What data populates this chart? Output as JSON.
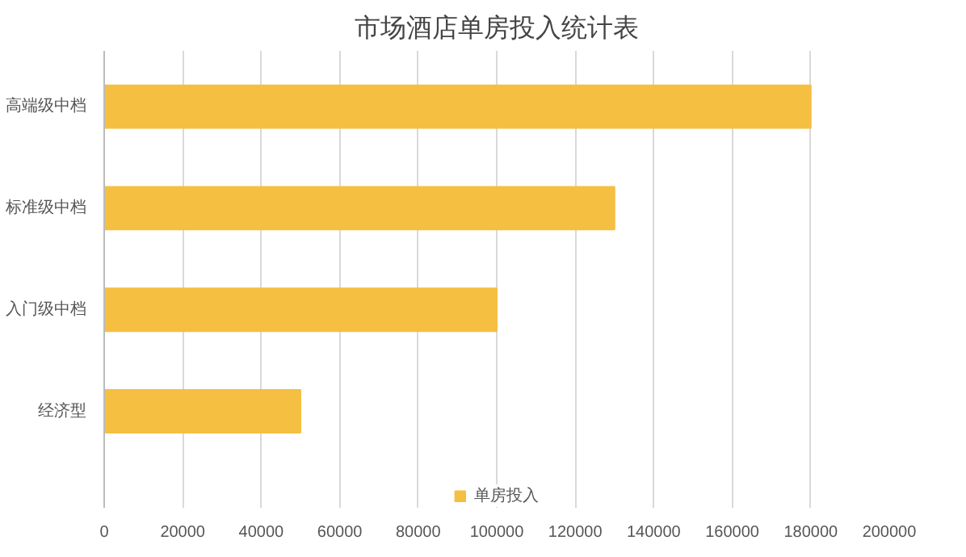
{
  "chart_data": {
    "type": "bar",
    "orientation": "horizontal",
    "title": "市场酒店单房投入统计表",
    "categories": [
      "高端级中档",
      "标准级中档",
      "入门级中档",
      "经济型"
    ],
    "series": [
      {
        "name": "单房投入",
        "color": "#f5bf42",
        "values": [
          180000,
          130000,
          100000,
          50000
        ]
      }
    ],
    "xlim": [
      0,
      200000
    ],
    "xticks": [
      0,
      20000,
      40000,
      60000,
      80000,
      100000,
      120000,
      140000,
      160000,
      180000,
      200000
    ],
    "grid": "x",
    "legend": "bottom"
  }
}
